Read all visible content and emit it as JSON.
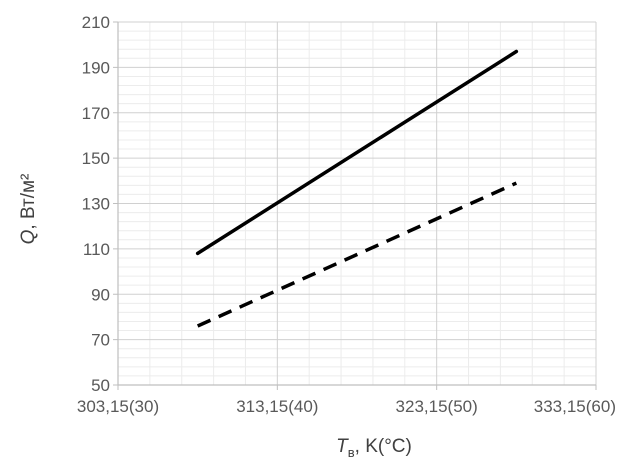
{
  "chart_data": {
    "type": "line",
    "x_ticks": [
      "303,15(30)",
      "313,15(40)",
      "323,15(50)",
      "333,15(60)"
    ],
    "x_tick_values": [
      303.15,
      313.15,
      323.15,
      333.15
    ],
    "xlim": [
      303.15,
      333.15
    ],
    "ylim": [
      50,
      210
    ],
    "y_ticks": [
      50,
      70,
      90,
      110,
      130,
      150,
      170,
      190,
      210
    ],
    "grid": true,
    "xlabel": {
      "symbol": "T",
      "subscript": "в",
      "unit": ",  K(°C)"
    },
    "ylabel": {
      "symbol": "Q",
      "unit": ", Вт/м²"
    },
    "series": [
      {
        "style": "solid",
        "color": "#000000",
        "x": [
          308.15,
          328.15
        ],
        "y": [
          108,
          197
        ]
      },
      {
        "style": "dashed",
        "color": "#000000",
        "x": [
          308.15,
          328.15
        ],
        "y": [
          76,
          139
        ]
      }
    ]
  }
}
